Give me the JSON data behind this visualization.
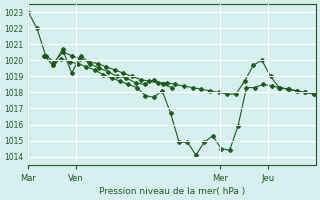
{
  "title": "Pression niveau de la mer( hPa )",
  "bg_color": "#d8eff0",
  "grid_color": "#ffffff",
  "line_color": "#1a5c1a",
  "ylim": [
    1013.5,
    1023.5
  ],
  "yticks": [
    1014,
    1015,
    1016,
    1017,
    1018,
    1019,
    1020,
    1021,
    1022,
    1023
  ],
  "xtick_labels": [
    "Mar",
    "Ven",
    "Mer",
    "Jeu"
  ],
  "xtick_positions": [
    0,
    24,
    96,
    120
  ],
  "series": [
    [
      1023.0,
      1022.0,
      1020.3,
      1019.9,
      1020.5,
      1020.3,
      1020.1,
      1019.9,
      1019.8,
      1019.6,
      1019.4,
      1019.2,
      1019.0,
      1018.8,
      1018.7,
      1018.6,
      1018.6,
      1018.5,
      1018.4,
      1018.3,
      1018.2,
      1018.1,
      1018.0,
      1017.9,
      1017.9,
      1018.7,
      1019.7,
      1020.0,
      1019.0,
      1018.3,
      1018.2,
      1018.1,
      1018.0,
      1017.9
    ],
    [
      1020.3,
      1019.7,
      1020.7,
      1019.2,
      1020.3,
      1019.8,
      1019.5,
      1019.3,
      1019.0,
      1018.9,
      1018.6,
      1018.5,
      1018.8,
      1018.5,
      1018.3
    ],
    [
      1020.3,
      1019.7,
      1020.1,
      1019.9,
      1019.8,
      1019.6,
      1019.4,
      1019.1,
      1018.9,
      1018.7,
      1018.5,
      1018.3,
      1017.8,
      1017.7,
      1018.1,
      1016.7,
      1014.9,
      1014.9,
      1014.1,
      1014.9,
      1015.3,
      1014.5,
      1014.4,
      1015.9,
      1018.3,
      1018.3,
      1018.5,
      1018.4,
      1018.3,
      1018.2,
      1018.1,
      1018.0,
      1017.9
    ]
  ],
  "series_offsets": [
    0,
    2,
    2
  ],
  "total_hours": 33
}
